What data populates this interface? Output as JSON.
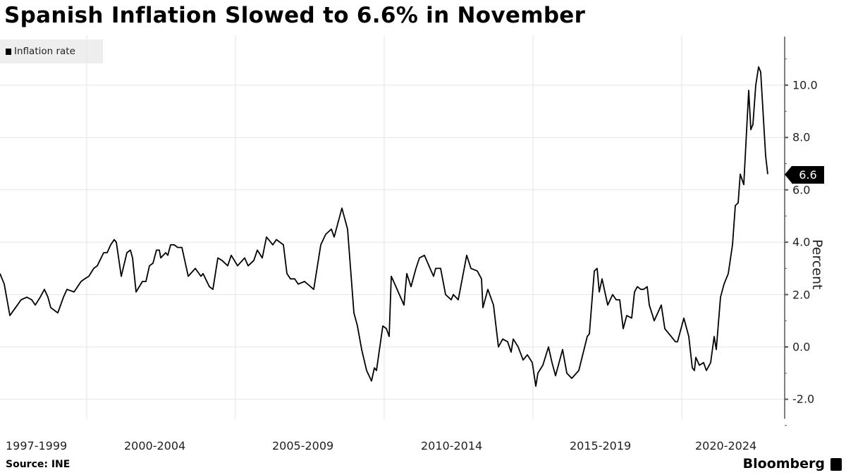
{
  "header": {
    "title": "Spanish Inflation Slowed to 6.6% in November"
  },
  "legend": {
    "items": [
      {
        "label": "Inflation rate",
        "color": "#000000"
      }
    ]
  },
  "axis": {
    "y_label": "Percent",
    "y_ticks": [
      "10.0",
      "8.0",
      "6.0",
      "4.0",
      "2.0",
      "0.0",
      "-2.0"
    ],
    "x_ticks": [
      "1997-1999",
      "2000-2004",
      "2005-2009",
      "2010-2014",
      "2015-2019",
      "2020-2024"
    ]
  },
  "last_value_label": "6.6",
  "footer": {
    "source": "Source: INE",
    "brand": "Bloomberg"
  },
  "colors": {
    "line": "#000000",
    "grid": "#e6e6e6",
    "axis": "#555555",
    "legend_bg": "#eeeeee"
  },
  "chart_data": {
    "type": "line",
    "title": "Spanish Inflation Slowed to 6.6% in November",
    "xlabel": "",
    "ylabel": "Percent",
    "ylim": [
      -2.7,
      11.8
    ],
    "yticks": [
      -2.0,
      0.0,
      2.0,
      4.0,
      6.0,
      8.0,
      10.0
    ],
    "x_periods": [
      "1997-1999",
      "2000-2004",
      "2005-2009",
      "2010-2014",
      "2015-2019",
      "2020-2024"
    ],
    "grid": true,
    "legend_position": "top-left",
    "last_value": 6.6,
    "series": [
      {
        "name": "Inflation rate",
        "points": [
          [
            0,
            2.8
          ],
          [
            6,
            2.4
          ],
          [
            14,
            1.2
          ],
          [
            22,
            1.5
          ],
          [
            30,
            1.8
          ],
          [
            38,
            1.9
          ],
          [
            45,
            1.8
          ],
          [
            50,
            1.6
          ],
          [
            57,
            1.9
          ],
          [
            63,
            2.2
          ],
          [
            68,
            1.9
          ],
          [
            72,
            1.5
          ],
          [
            82,
            1.3
          ],
          [
            90,
            1.9
          ],
          [
            95,
            2.2
          ],
          [
            105,
            2.1
          ],
          [
            115,
            2.5
          ],
          [
            120,
            2.6
          ],
          [
            126,
            2.7
          ],
          [
            133,
            3.0
          ],
          [
            138,
            3.1
          ],
          [
            147,
            3.6
          ],
          [
            152,
            3.6
          ],
          [
            157,
            3.9
          ],
          [
            162,
            4.1
          ],
          [
            165,
            4.0
          ],
          [
            172,
            2.7
          ],
          [
            180,
            3.6
          ],
          [
            185,
            3.7
          ],
          [
            188,
            3.4
          ],
          [
            193,
            2.1
          ],
          [
            202,
            2.5
          ],
          [
            207,
            2.5
          ],
          [
            212,
            3.1
          ],
          [
            217,
            3.2
          ],
          [
            222,
            3.7
          ],
          [
            226,
            3.7
          ],
          [
            228,
            3.4
          ],
          [
            235,
            3.6
          ],
          [
            238,
            3.5
          ],
          [
            242,
            3.9
          ],
          [
            247,
            3.9
          ],
          [
            252,
            3.8
          ],
          [
            258,
            3.8
          ],
          [
            267,
            2.7
          ],
          [
            277,
            3.0
          ],
          [
            285,
            2.7
          ],
          [
            288,
            2.8
          ],
          [
            297,
            2.3
          ],
          [
            302,
            2.2
          ],
          [
            309,
            3.4
          ],
          [
            315,
            3.3
          ],
          [
            323,
            3.1
          ],
          [
            328,
            3.5
          ],
          [
            337,
            3.1
          ],
          [
            347,
            3.4
          ],
          [
            352,
            3.1
          ],
          [
            360,
            3.3
          ],
          [
            365,
            3.7
          ],
          [
            372,
            3.4
          ],
          [
            378,
            4.2
          ],
          [
            387,
            3.9
          ],
          [
            392,
            4.1
          ],
          [
            402,
            3.9
          ],
          [
            407,
            2.8
          ],
          [
            412,
            2.6
          ],
          [
            418,
            2.6
          ],
          [
            423,
            2.4
          ],
          [
            432,
            2.5
          ],
          [
            445,
            2.2
          ],
          [
            455,
            3.9
          ],
          [
            462,
            4.3
          ],
          [
            470,
            4.5
          ],
          [
            474,
            4.2
          ],
          [
            485,
            5.3
          ],
          [
            493,
            4.5
          ],
          [
            502,
            1.3
          ],
          [
            507,
            0.8
          ],
          [
            513,
            -0.1
          ],
          [
            520,
            -0.9
          ],
          [
            527,
            -1.3
          ],
          [
            531,
            -0.8
          ],
          [
            534,
            -0.9
          ],
          [
            543,
            0.8
          ],
          [
            548,
            0.7
          ],
          [
            552,
            0.4
          ],
          [
            555,
            2.7
          ],
          [
            560,
            2.4
          ],
          [
            573,
            1.6
          ],
          [
            577,
            2.8
          ],
          [
            583,
            2.3
          ],
          [
            590,
            3.0
          ],
          [
            595,
            3.4
          ],
          [
            602,
            3.5
          ],
          [
            610,
            3.0
          ],
          [
            615,
            2.7
          ],
          [
            618,
            3.0
          ],
          [
            625,
            3.0
          ],
          [
            632,
            2.0
          ],
          [
            640,
            1.8
          ],
          [
            643,
            2.0
          ],
          [
            650,
            1.8
          ],
          [
            662,
            3.5
          ],
          [
            668,
            3.0
          ],
          [
            677,
            2.9
          ],
          [
            683,
            2.6
          ],
          [
            685,
            1.5
          ],
          [
            692,
            2.2
          ],
          [
            700,
            1.6
          ],
          [
            707,
            0.0
          ],
          [
            713,
            0.3
          ],
          [
            720,
            0.2
          ],
          [
            725,
            -0.2
          ],
          [
            728,
            0.3
          ],
          [
            735,
            0.0
          ],
          [
            742,
            -0.5
          ],
          [
            748,
            -0.3
          ],
          [
            755,
            -0.6
          ],
          [
            760,
            -1.5
          ],
          [
            763,
            -1.0
          ],
          [
            770,
            -0.7
          ],
          [
            778,
            0.0
          ],
          [
            783,
            -0.6
          ],
          [
            788,
            -1.1
          ],
          [
            798,
            -0.1
          ],
          [
            804,
            -1.0
          ],
          [
            811,
            -1.2
          ],
          [
            821,
            -0.9
          ],
          [
            833,
            0.4
          ],
          [
            836,
            0.5
          ],
          [
            843,
            2.9
          ],
          [
            847,
            3.0
          ],
          [
            850,
            2.1
          ],
          [
            854,
            2.6
          ],
          [
            862,
            1.6
          ],
          [
            869,
            2.0
          ],
          [
            874,
            1.8
          ],
          [
            879,
            1.8
          ],
          [
            884,
            0.7
          ],
          [
            889,
            1.2
          ],
          [
            896,
            1.1
          ],
          [
            900,
            2.1
          ],
          [
            904,
            2.3
          ],
          [
            909,
            2.2
          ],
          [
            913,
            2.2
          ],
          [
            918,
            2.3
          ],
          [
            921,
            1.6
          ],
          [
            928,
            1.0
          ],
          [
            938,
            1.6
          ],
          [
            943,
            0.7
          ],
          [
            949,
            0.5
          ],
          [
            958,
            0.2
          ],
          [
            961,
            0.2
          ],
          [
            969,
            1.0
          ],
          [
            970,
            1.1
          ],
          [
            977,
            0.4
          ],
          [
            982,
            -0.8
          ],
          [
            985,
            -0.9
          ],
          [
            987,
            -0.4
          ],
          [
            992,
            -0.7
          ],
          [
            998,
            -0.6
          ],
          [
            1002,
            -0.9
          ],
          [
            1008,
            -0.6
          ],
          [
            1013,
            0.4
          ],
          [
            1016,
            -0.1
          ],
          [
            1022,
            1.9
          ],
          [
            1027,
            2.4
          ],
          [
            1033,
            2.8
          ],
          [
            1039,
            3.9
          ],
          [
            1043,
            5.4
          ],
          [
            1047,
            5.5
          ],
          [
            1050,
            6.6
          ],
          [
            1055,
            6.2
          ],
          [
            1062,
            9.8
          ],
          [
            1065,
            8.3
          ],
          [
            1068,
            8.5
          ],
          [
            1072,
            10.0
          ],
          [
            1076,
            10.7
          ],
          [
            1079,
            10.5
          ],
          [
            1086,
            7.3
          ],
          [
            1089,
            6.6
          ]
        ]
      }
    ]
  }
}
